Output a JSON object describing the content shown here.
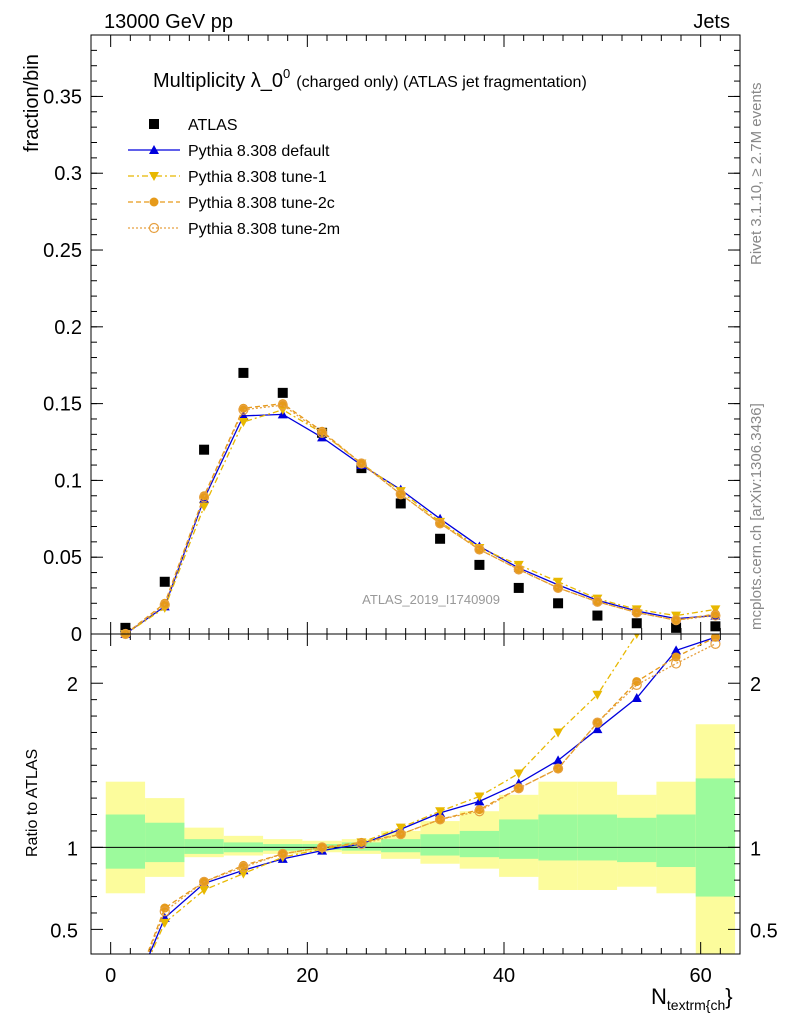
{
  "header": {
    "left": "13000 GeV pp",
    "right": "Jets"
  },
  "side_labels": {
    "upper": "Rivet 3.1.10, ≥ 2.7M events",
    "lower": "mcplots.cern.ch [arXiv:1306.3436]"
  },
  "chart_data": {
    "type": "scatter",
    "title_main": "Multiplicity λ_0",
    "title_sup": "0",
    "title_rest": "(charged only) (ATLAS jet fragmentation)",
    "watermark": "ATLAS_2019_I1740909",
    "xlabel_main": "N",
    "xlabel_sub": "textrm{ch",
    "xlabel_close": "}",
    "ylabel_top": "fraction/bin",
    "ylabel_bottom": "Ratio to ATLAS",
    "xlim": [
      -2,
      64
    ],
    "ylim_top": [
      0,
      0.39
    ],
    "ylim_bottom": [
      0.35,
      2.3
    ],
    "x_ticks": [
      0,
      20,
      40,
      60
    ],
    "x_tick_labels": [
      "0",
      "20",
      "40",
      "60"
    ],
    "y_ticks_top": [
      0,
      0.05,
      0.1,
      0.15,
      0.2,
      0.25,
      0.3,
      0.35
    ],
    "y_tick_labels_top": [
      "0",
      "0.05",
      "0.1",
      "0.15",
      "0.2",
      "0.25",
      "0.3",
      "0.35"
    ],
    "y_ticks_bottom": [
      0.5,
      1,
      2
    ],
    "y_tick_labels_bottom": [
      "0.5",
      "1",
      "2"
    ],
    "bin_edges": [
      -0.5,
      3.5,
      7.5,
      11.5,
      15.5,
      19.5,
      23.5,
      27.5,
      31.5,
      35.5,
      39.5,
      43.5,
      47.5,
      51.5,
      55.5,
      59.5,
      63.5
    ],
    "x": [
      1.5,
      5.5,
      9.5,
      13.5,
      17.5,
      21.5,
      25.5,
      29.5,
      33.5,
      37.5,
      41.5,
      45.5,
      49.5,
      53.5,
      57.5,
      61.5
    ],
    "legend_placement": "top-left",
    "series": [
      {
        "name": "ATLAS",
        "color": "#000000",
        "marker": "square",
        "values": [
          0.004,
          0.034,
          0.12,
          0.17,
          0.157,
          0.131,
          0.108,
          0.085,
          0.062,
          0.045,
          0.03,
          0.02,
          0.012,
          0.007,
          0.004,
          0.005
        ]
      },
      {
        "name": "Pythia 8.308 default",
        "color": "#0000dd",
        "marker": "triangle-up",
        "dash": "",
        "values": [
          0.0,
          0.018,
          0.088,
          0.142,
          0.143,
          0.128,
          0.11,
          0.094,
          0.075,
          0.057,
          0.043,
          0.032,
          0.022,
          0.015,
          0.01,
          0.012
        ]
      },
      {
        "name": "Pythia 8.308 tune-1",
        "color": "#e8b800",
        "marker": "triangle-down",
        "dash": "6,3,2,3",
        "values": [
          0.0,
          0.017,
          0.083,
          0.138,
          0.146,
          0.131,
          0.111,
          0.093,
          0.073,
          0.056,
          0.045,
          0.034,
          0.023,
          0.016,
          0.012,
          0.016
        ]
      },
      {
        "name": "Pythia 8.308 tune-2c",
        "color": "#e69a1a",
        "marker": "circle",
        "dash": "5,3",
        "values": [
          0.0,
          0.02,
          0.09,
          0.147,
          0.15,
          0.132,
          0.111,
          0.091,
          0.072,
          0.055,
          0.042,
          0.03,
          0.021,
          0.014,
          0.009,
          0.013
        ]
      },
      {
        "name": "Pythia 8.308 tune-2m",
        "color": "#e6a040",
        "marker": "circle-open",
        "dash": "2,2",
        "values": [
          0.0,
          0.019,
          0.089,
          0.146,
          0.149,
          0.131,
          0.111,
          0.091,
          0.072,
          0.055,
          0.042,
          0.03,
          0.021,
          0.014,
          0.009,
          0.012
        ]
      }
    ],
    "ratio_series": [
      {
        "name": "Pythia 8.308 default",
        "values": [
          0.0,
          0.57,
          0.78,
          0.86,
          0.93,
          0.98,
          1.02,
          1.11,
          1.21,
          1.28,
          1.39,
          1.53,
          1.72,
          1.91,
          2.2,
          2.28
        ]
      },
      {
        "name": "Pythia 8.308 tune-1",
        "values": [
          0.0,
          0.54,
          0.74,
          0.84,
          0.94,
          0.99,
          1.03,
          1.12,
          1.22,
          1.31,
          1.45,
          1.7,
          1.93,
          2.3,
          2.4,
          2.4
        ]
      },
      {
        "name": "Pythia 8.308 tune-2c",
        "values": [
          0.0,
          0.63,
          0.79,
          0.89,
          0.96,
          1.0,
          1.03,
          1.08,
          1.17,
          1.23,
          1.36,
          1.48,
          1.76,
          2.01,
          2.16,
          2.28
        ]
      },
      {
        "name": "Pythia 8.308 tune-2m",
        "values": [
          0.0,
          0.61,
          0.79,
          0.88,
          0.96,
          1.0,
          1.02,
          1.08,
          1.17,
          1.22,
          1.36,
          1.48,
          1.76,
          1.99,
          2.12,
          2.24
        ]
      }
    ],
    "bands": {
      "inner_color": "#9cfa9c",
      "outer_color": "#fcfc9c",
      "inner_lo": [
        0.87,
        0.91,
        0.96,
        0.97,
        0.98,
        0.985,
        0.98,
        0.97,
        0.95,
        0.94,
        0.93,
        0.92,
        0.92,
        0.91,
        0.88,
        0.7
      ],
      "inner_hi": [
        1.2,
        1.15,
        1.05,
        1.03,
        1.02,
        1.02,
        1.03,
        1.05,
        1.08,
        1.1,
        1.17,
        1.2,
        1.2,
        1.18,
        1.2,
        1.42
      ],
      "outer_lo": [
        0.72,
        0.82,
        0.94,
        0.95,
        0.96,
        0.97,
        0.96,
        0.93,
        0.9,
        0.87,
        0.82,
        0.74,
        0.74,
        0.76,
        0.72,
        0.3
      ],
      "outer_hi": [
        1.4,
        1.3,
        1.12,
        1.07,
        1.05,
        1.04,
        1.05,
        1.1,
        1.16,
        1.22,
        1.32,
        1.4,
        1.4,
        1.32,
        1.4,
        1.75
      ]
    }
  }
}
